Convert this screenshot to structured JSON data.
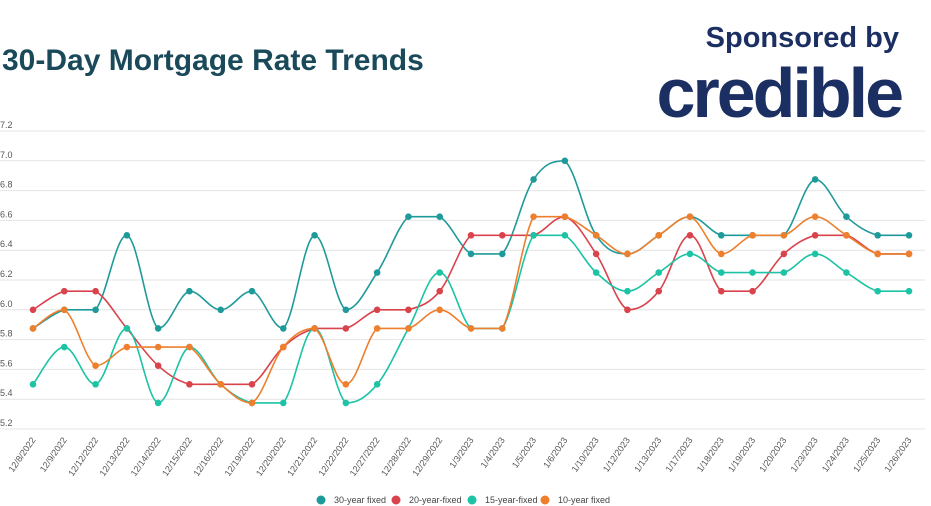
{
  "header": {
    "title": "30-Day Mortgage Rate Trends",
    "sponsor_label": "Sponsored by",
    "brand": "credible"
  },
  "chart_data": {
    "type": "line",
    "title": "30-Day Mortgage Rate Trends",
    "xlabel": "",
    "ylabel": "",
    "ylim": [
      5.2,
      7.2
    ],
    "yticks": [
      5.2,
      5.4,
      5.6,
      5.8,
      6.0,
      6.2,
      6.4,
      6.6,
      6.8,
      7.0,
      7.2
    ],
    "grid": true,
    "legend": "bottom",
    "categories": [
      "12/8/2022",
      "12/9/2022",
      "12/12/2022",
      "12/13/2022",
      "12/14/2022",
      "12/15/2022",
      "12/16/2022",
      "12/19/2022",
      "12/20/2022",
      "12/21/2022",
      "12/22/2022",
      "12/27/2022",
      "12/28/2022",
      "12/29/2022",
      "1/3/2023",
      "1/4/2023",
      "1/5/2023",
      "1/6/2023",
      "1/10/2023",
      "1/12/2023",
      "1/13/2023",
      "1/17/2023",
      "1/18/2023",
      "1/19/2023",
      "1/20/2023",
      "1/23/2023",
      "1/24/2023",
      "1/25/2023",
      "1/26/2023"
    ],
    "series": [
      {
        "name": "30-year fixed",
        "color": "#1f9a9a",
        "values": [
          5.875,
          6.0,
          6.0,
          6.5,
          5.875,
          6.125,
          6.0,
          6.125,
          5.875,
          6.5,
          6.0,
          6.25,
          6.625,
          6.625,
          6.375,
          6.375,
          6.875,
          7.0,
          6.5,
          6.375,
          6.5,
          6.625,
          6.5,
          6.5,
          6.5,
          6.875,
          6.625,
          6.5,
          6.5
        ]
      },
      {
        "name": "20-year-fixed",
        "color": "#d9434b",
        "values": [
          6.0,
          6.125,
          6.125,
          5.875,
          5.625,
          5.5,
          5.5,
          5.5,
          5.75,
          5.875,
          5.875,
          6.0,
          6.0,
          6.125,
          6.5,
          6.5,
          6.5,
          6.625,
          6.375,
          6.0,
          6.125,
          6.5,
          6.125,
          6.125,
          6.375,
          6.5,
          6.5,
          6.375,
          6.375
        ]
      },
      {
        "name": "15-year-fixed",
        "color": "#1cc3a5",
        "values": [
          5.5,
          5.75,
          5.5,
          5.875,
          5.375,
          5.75,
          5.5,
          5.375,
          5.375,
          5.875,
          5.375,
          5.5,
          5.875,
          6.25,
          5.875,
          5.875,
          6.5,
          6.5,
          6.25,
          6.125,
          6.25,
          6.375,
          6.25,
          6.25,
          6.25,
          6.375,
          6.25,
          6.125,
          6.125
        ]
      },
      {
        "name": "10-year fixed",
        "color": "#ee7f2d",
        "values": [
          5.875,
          6.0,
          5.625,
          5.75,
          5.75,
          5.75,
          5.5,
          5.375,
          5.75,
          5.875,
          5.5,
          5.875,
          5.875,
          6.0,
          5.875,
          5.875,
          6.625,
          6.625,
          6.5,
          6.375,
          6.5,
          6.625,
          6.375,
          6.5,
          6.5,
          6.625,
          6.5,
          6.375,
          6.375
        ]
      }
    ]
  }
}
